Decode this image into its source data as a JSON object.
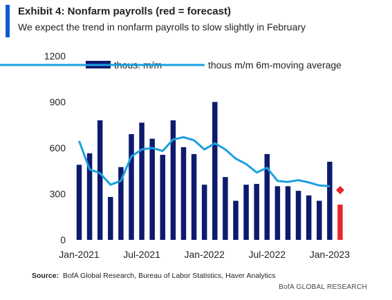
{
  "header": {
    "title": "Exhibit 4: Nonfarm payrolls (red = forecast)",
    "subtitle": "We expect the trend in nonfarm payrolls to slow slightly in February"
  },
  "footer": {
    "source_label": "Source:",
    "source_text": "BofA Global Research, Bureau of Labor Statistics, Haver Analytics",
    "brand": "BofA GLOBAL RESEARCH"
  },
  "colors": {
    "bars": "#0d1a6e",
    "line": "#1aa0e0",
    "forecast": "#e8262b",
    "accent": "#0a5bd3"
  },
  "chart_data": {
    "type": "bar",
    "title": "Exhibit 4: Nonfarm payrolls (red = forecast)",
    "subtitle": "We expect the trend in nonfarm payrolls to slow slightly in February",
    "ylim": [
      0,
      1200
    ],
    "yticks": [
      0,
      300,
      600,
      900,
      1200
    ],
    "xtick_labels": [
      "Jan-2021",
      "Jul-2021",
      "Jan-2022",
      "Jul-2022",
      "Jan-2023"
    ],
    "xtick_indices": [
      0,
      6,
      12,
      18,
      24
    ],
    "grid": false,
    "legend_position": "top",
    "categories": [
      "Jan-2021",
      "Feb-2021",
      "Mar-2021",
      "Apr-2021",
      "May-2021",
      "Jun-2021",
      "Jul-2021",
      "Aug-2021",
      "Sep-2021",
      "Oct-2021",
      "Nov-2021",
      "Dec-2021",
      "Jan-2022",
      "Feb-2022",
      "Mar-2022",
      "Apr-2022",
      "May-2022",
      "Jun-2022",
      "Jul-2022",
      "Aug-2022",
      "Sep-2022",
      "Oct-2022",
      "Nov-2022",
      "Dec-2022",
      "Jan-2023",
      "Feb-2023"
    ],
    "series": [
      {
        "name": "thous. m/m",
        "kind": "bar",
        "values": [
          490,
          565,
          780,
          280,
          475,
          690,
          765,
          660,
          555,
          780,
          605,
          560,
          360,
          900,
          410,
          255,
          360,
          365,
          560,
          350,
          350,
          320,
          290,
          255,
          510,
          null
        ]
      },
      {
        "name": "thous m/m 6m-moving average",
        "kind": "line",
        "values": [
          645,
          460,
          435,
          360,
          385,
          545,
          590,
          600,
          580,
          655,
          670,
          650,
          590,
          630,
          590,
          530,
          495,
          440,
          470,
          385,
          378,
          390,
          375,
          355,
          350,
          null
        ]
      },
      {
        "name": "forecast",
        "kind": "forecast",
        "bar_value": 230,
        "marker_value": 325,
        "index": 25
      }
    ]
  }
}
